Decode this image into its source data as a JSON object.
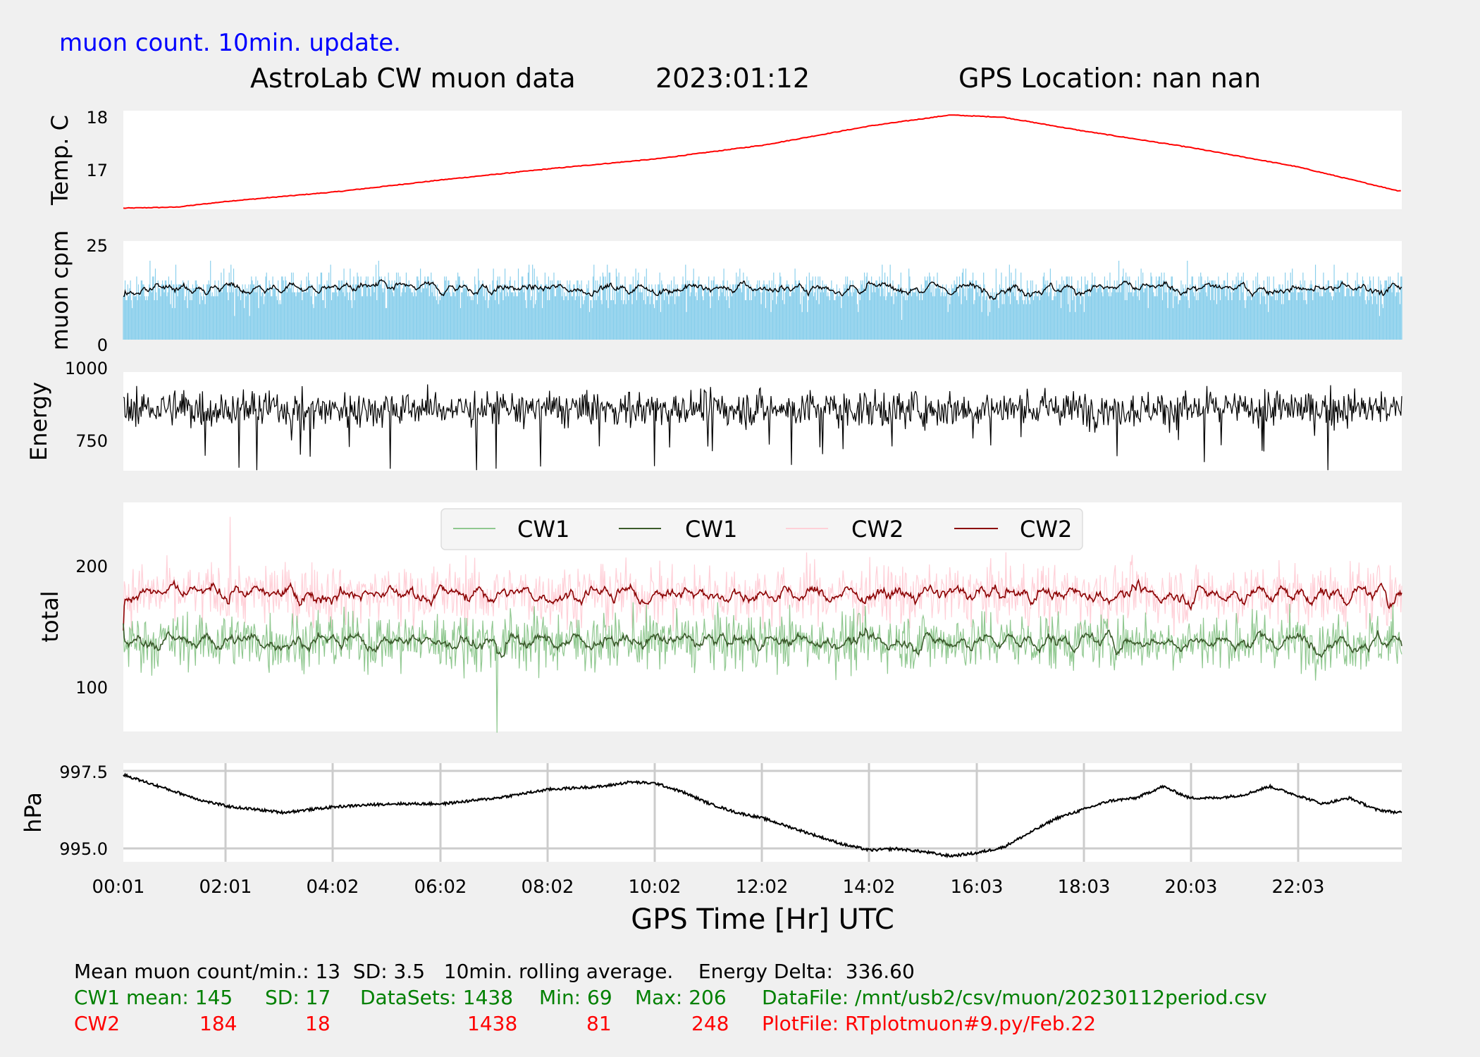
{
  "header": {
    "subtitle": "muon count.  10min. update.",
    "title": "AstroLab CW muon data",
    "date": "2023:01:12",
    "gps_location": "GPS Location: nan   nan"
  },
  "colors": {
    "background": "#f0f0f0",
    "temperature": "#ff0000",
    "muon_bars": "#87ceeb",
    "cw1_raw": "#90c890",
    "cw1_avg": "#3a5a2a",
    "cw2_raw": "#ffd0d8",
    "cw2_avg": "#8b0000",
    "green_text": "#008000",
    "red_text": "#ff0000",
    "blue_text": "#0000ff"
  },
  "chart_data": [
    {
      "id": "temperature",
      "type": "line",
      "ylabel": "Temp. C",
      "yticks": [
        17,
        18
      ],
      "ylim": [
        16.3,
        18.1
      ],
      "x_hours": [
        0.0,
        1.0,
        2.0,
        4.0,
        6.0,
        8.0,
        10.0,
        12.0,
        14.0,
        15.5,
        16.5,
        18.0,
        20.0,
        22.0,
        23.9
      ],
      "values": [
        16.32,
        16.34,
        16.45,
        16.62,
        16.84,
        17.04,
        17.22,
        17.47,
        17.82,
        18.02,
        17.98,
        17.73,
        17.43,
        17.08,
        16.64
      ]
    },
    {
      "id": "muon_cpm",
      "type": "bar",
      "ylabel": "muon cpm",
      "yticks": [
        0,
        25
      ],
      "ylim": [
        0,
        25
      ],
      "mean": 13,
      "sd": 3.5,
      "rolling_average_label": "10min. rolling average"
    },
    {
      "id": "energy",
      "type": "line",
      "ylabel": "Energy",
      "yticks": [
        750,
        1000
      ],
      "ylim": [
        650,
        1000
      ],
      "mean": 870
    },
    {
      "id": "total",
      "type": "line",
      "ylabel": "total",
      "yticks": [
        100,
        200
      ],
      "ylim": [
        70,
        260
      ],
      "legend": [
        "CW1",
        "CW1",
        "CW2",
        "CW2"
      ],
      "legend_placement": "top-center",
      "series": [
        {
          "name": "CW1",
          "mean": 145,
          "sd": 17,
          "min": 69,
          "max": 206
        },
        {
          "name": "CW2",
          "mean": 184,
          "sd": 18,
          "min": 81,
          "max": 248
        }
      ]
    },
    {
      "id": "pressure",
      "type": "line",
      "ylabel": "hPa",
      "yticks": [
        "997.5",
        "995.0"
      ],
      "ylim": [
        994.6,
        998.0
      ],
      "grid": true,
      "x_hours": [
        0.0,
        0.5,
        1.0,
        1.5,
        2.0,
        2.5,
        3.0,
        4.0,
        5.0,
        6.0,
        7.0,
        8.0,
        9.0,
        9.5,
        10.0,
        10.5,
        11.0,
        11.5,
        12.0,
        12.5,
        13.0,
        13.5,
        14.0,
        14.5,
        15.0,
        15.5,
        16.0,
        16.5,
        17.0,
        17.5,
        18.0,
        18.5,
        19.0,
        19.5,
        20.0,
        20.5,
        21.0,
        21.5,
        22.0,
        22.5,
        23.0,
        23.5,
        23.9
      ],
      "values": [
        997.6,
        997.3,
        997.0,
        996.7,
        996.5,
        996.4,
        996.3,
        996.5,
        996.6,
        996.6,
        996.8,
        997.1,
        997.2,
        997.35,
        997.3,
        997.0,
        996.6,
        996.3,
        996.1,
        995.8,
        995.5,
        995.2,
        995.0,
        995.05,
        994.95,
        994.8,
        994.9,
        995.1,
        995.6,
        996.1,
        996.4,
        996.7,
        996.8,
        997.2,
        996.8,
        996.8,
        996.9,
        997.2,
        996.9,
        996.6,
        996.8,
        996.4,
        996.3
      ]
    }
  ],
  "x_axis": {
    "label": "GPS Time  [Hr] UTC",
    "ticks": [
      "00:01",
      "02:01",
      "04:02",
      "06:02",
      "08:02",
      "10:02",
      "12:02",
      "14:02",
      "16:03",
      "18:03",
      "20:03",
      "22:03"
    ]
  },
  "stats": {
    "line1": "Mean muon count/min.: 13  SD: 3.5   10min. rolling average.    Energy Delta:  336.60",
    "cw1": {
      "label": "CW1 mean: 145",
      "sd": "SD: 17",
      "datasets": "DataSets: 1438",
      "min": "Min: 69",
      "max": "Max: 206",
      "file": "DataFile: /mnt/usb2/csv/muon/20230112period.csv"
    },
    "cw2": {
      "label": "CW2",
      "mean": "184",
      "sd": "18",
      "datasets": "1438",
      "min": "81",
      "max": "248",
      "file": "PlotFile: RTplotmuon#9.py/Feb.22"
    }
  }
}
